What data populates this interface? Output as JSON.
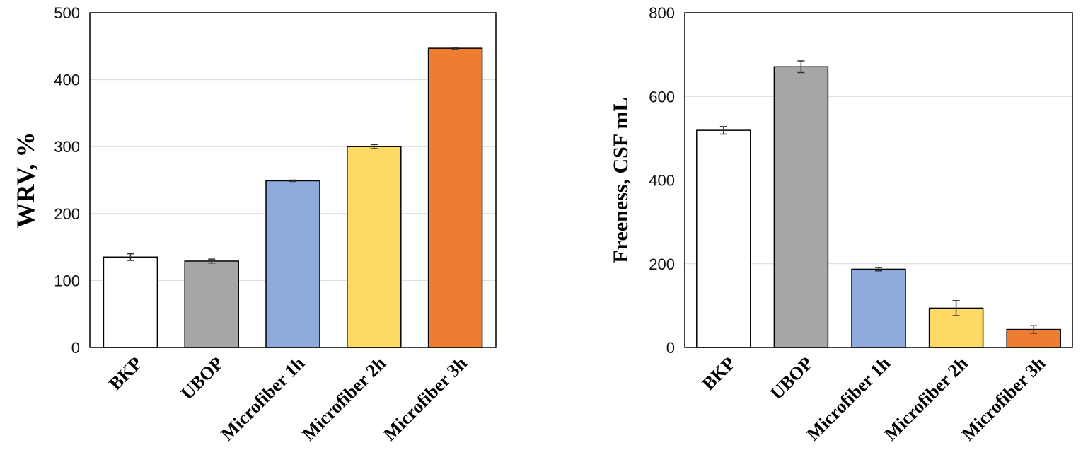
{
  "chart_data": [
    {
      "type": "bar",
      "categories": [
        "BKP",
        "UBOP",
        "Microfiber 1h",
        "Microfiber 2h",
        "Microfiber 3h"
      ],
      "values": [
        135,
        129,
        249,
        300,
        447
      ],
      "errors": [
        5,
        3,
        1,
        3,
        1
      ],
      "colors": [
        "#ffffff",
        "#a6a6a6",
        "#8faadc",
        "#ffd966",
        "#ed7d31"
      ],
      "title": "",
      "xlabel": "",
      "ylabel": "WRV, %",
      "ylim": [
        0,
        500
      ],
      "yticks": [
        0,
        100,
        200,
        300,
        400,
        500
      ],
      "grid": true
    },
    {
      "type": "bar",
      "categories": [
        "BKP",
        "UBOP",
        "Microfiber 1h",
        "Microfiber 2h",
        "Microfiber 3h"
      ],
      "values": [
        519,
        671,
        187,
        94,
        43
      ],
      "errors": [
        9,
        14,
        4,
        18,
        9
      ],
      "colors": [
        "#ffffff",
        "#a6a6a6",
        "#8faadc",
        "#ffd966",
        "#ed7d31"
      ],
      "title": "",
      "xlabel": "",
      "ylabel": "Freeness, CSF mL",
      "ylim": [
        0,
        800
      ],
      "yticks": [
        0,
        200,
        400,
        600,
        800
      ],
      "grid": true
    }
  ]
}
